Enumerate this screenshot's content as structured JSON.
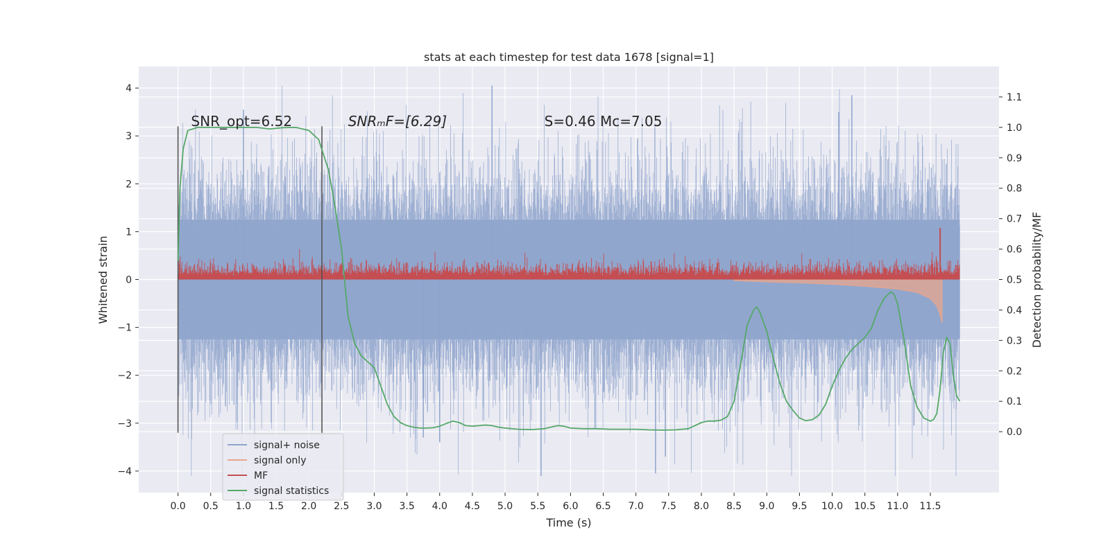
{
  "chart_data": {
    "type": "line",
    "title": "stats at each timestep for test data 1678 [signal=1]",
    "xlabel": "Time (s)",
    "ylabel_left": "Whitened strain",
    "ylabel_right": "Detection probability/MF",
    "xlim": [
      -0.6,
      12.55
    ],
    "ylim_left": [
      -4.45,
      4.45
    ],
    "ylim_right": [
      -0.2,
      1.2
    ],
    "xticks": [
      0.0,
      0.5,
      1.0,
      1.5,
      2.0,
      2.5,
      3.0,
      3.5,
      4.0,
      4.5,
      5.0,
      5.5,
      6.0,
      6.5,
      7.0,
      7.5,
      8.0,
      8.5,
      9.0,
      9.5,
      10.0,
      10.5,
      11.0,
      11.5
    ],
    "xtick_labels": [
      "0.0",
      "0.5",
      "1.0",
      "1.5",
      "2.0",
      "2.5",
      "3.0",
      "3.5",
      "4.0",
      "4.5",
      "5.0",
      "5.5",
      "6.0",
      "6.5",
      "7.0",
      "7.5",
      "8.0",
      "8.5",
      "9.0",
      "9.5",
      "10.0",
      "10.5",
      "11.0",
      "11.5"
    ],
    "yticks_left": [
      -4,
      -3,
      -2,
      -1,
      0,
      1,
      2,
      3,
      4
    ],
    "ytick_labels_left": [
      "−4",
      "−3",
      "−2",
      "−1",
      "0",
      "1",
      "2",
      "3",
      "4"
    ],
    "yticks_right": [
      0.0,
      0.1,
      0.2,
      0.3,
      0.4,
      0.5,
      0.6,
      0.7,
      0.8,
      0.9,
      1.0,
      1.1
    ],
    "ytick_labels_right": [
      "0.0",
      "0.1",
      "0.2",
      "0.3",
      "0.4",
      "0.5",
      "0.6",
      "0.7",
      "0.8",
      "0.9",
      "1.0",
      "1.1"
    ],
    "grid": true,
    "legend_position": "bottom-left",
    "vertical_markers": [
      {
        "x": 0.0,
        "y_range": [
          -3.2,
          3.2
        ]
      },
      {
        "x": 2.2,
        "y_range": [
          -3.2,
          3.2
        ]
      }
    ],
    "annotations": [
      {
        "text": "SNR_opt=6.52",
        "x": 0.2
      },
      {
        "text": "SNRₘF=[6.29]",
        "x": 2.6
      },
      {
        "text": "S=0.46   Mc=7.05",
        "x": 5.6
      }
    ],
    "series": [
      {
        "name": "signal+ noise",
        "axis": "left",
        "color": "#8fa4cc",
        "x_range": [
          0.0,
          11.95
        ],
        "typical_range": [
          -1.3,
          1.3
        ],
        "extremes": [
          -4.1,
          4.05
        ]
      },
      {
        "name": "signal only",
        "axis": "left",
        "color": "#e8a58c",
        "x": [
          8.5,
          9.0,
          9.5,
          10.0,
          10.5,
          11.0,
          11.3,
          11.5,
          11.6,
          11.65,
          11.68
        ],
        "envelope": [
          0.02,
          0.05,
          0.07,
          0.1,
          0.14,
          0.2,
          0.27,
          0.4,
          0.55,
          0.75,
          0.9
        ]
      },
      {
        "name": "MF",
        "axis": "right",
        "color": "#c44e52",
        "x_range": [
          0.0,
          11.95
        ],
        "baseline": 0.5,
        "typical_top": 0.57,
        "peak": {
          "x": 11.65,
          "y": 0.67
        }
      },
      {
        "name": "signal statistics",
        "axis": "right",
        "color": "#55a868",
        "x": [
          0.0,
          0.03,
          0.08,
          0.15,
          0.3,
          0.5,
          0.8,
          1.0,
          1.2,
          1.4,
          1.6,
          1.8,
          2.0,
          2.15,
          2.3,
          2.4,
          2.5,
          2.6,
          2.7,
          2.8,
          2.9,
          3.0,
          3.1,
          3.2,
          3.3,
          3.4,
          3.5,
          3.6,
          3.7,
          3.8,
          3.9,
          4.0,
          4.1,
          4.2,
          4.3,
          4.4,
          4.5,
          4.6,
          4.7,
          4.8,
          4.9,
          5.0,
          5.2,
          5.4,
          5.6,
          5.8,
          5.9,
          6.0,
          6.2,
          6.4,
          6.6,
          6.8,
          7.0,
          7.2,
          7.4,
          7.6,
          7.8,
          7.9,
          8.0,
          8.1,
          8.2,
          8.3,
          8.4,
          8.5,
          8.6,
          8.7,
          8.8,
          8.85,
          8.9,
          9.0,
          9.1,
          9.2,
          9.3,
          9.4,
          9.5,
          9.6,
          9.7,
          9.8,
          9.9,
          10.0,
          10.1,
          10.2,
          10.3,
          10.4,
          10.5,
          10.6,
          10.7,
          10.8,
          10.9,
          10.95,
          11.0,
          11.1,
          11.2,
          11.3,
          11.4,
          11.5,
          11.55,
          11.6,
          11.65,
          11.7,
          11.75,
          11.8,
          11.85,
          11.9,
          11.95
        ],
        "y": [
          0.56,
          0.8,
          0.93,
          0.99,
          1.0,
          1.0,
          1.0,
          1.0,
          1.0,
          0.995,
          0.999,
          1.0,
          0.99,
          0.96,
          0.86,
          0.74,
          0.6,
          0.38,
          0.29,
          0.25,
          0.23,
          0.21,
          0.15,
          0.09,
          0.05,
          0.03,
          0.02,
          0.015,
          0.012,
          0.012,
          0.013,
          0.018,
          0.027,
          0.035,
          0.03,
          0.02,
          0.018,
          0.02,
          0.022,
          0.02,
          0.015,
          0.012,
          0.008,
          0.007,
          0.01,
          0.02,
          0.018,
          0.012,
          0.01,
          0.01,
          0.008,
          0.008,
          0.008,
          0.006,
          0.005,
          0.006,
          0.01,
          0.02,
          0.03,
          0.035,
          0.035,
          0.038,
          0.05,
          0.1,
          0.22,
          0.35,
          0.4,
          0.41,
          0.39,
          0.33,
          0.24,
          0.16,
          0.1,
          0.07,
          0.045,
          0.036,
          0.04,
          0.055,
          0.09,
          0.15,
          0.2,
          0.24,
          0.27,
          0.29,
          0.31,
          0.34,
          0.4,
          0.44,
          0.46,
          0.45,
          0.42,
          0.3,
          0.15,
          0.08,
          0.045,
          0.035,
          0.04,
          0.06,
          0.14,
          0.26,
          0.31,
          0.29,
          0.19,
          0.12,
          0.1
        ]
      }
    ]
  }
}
